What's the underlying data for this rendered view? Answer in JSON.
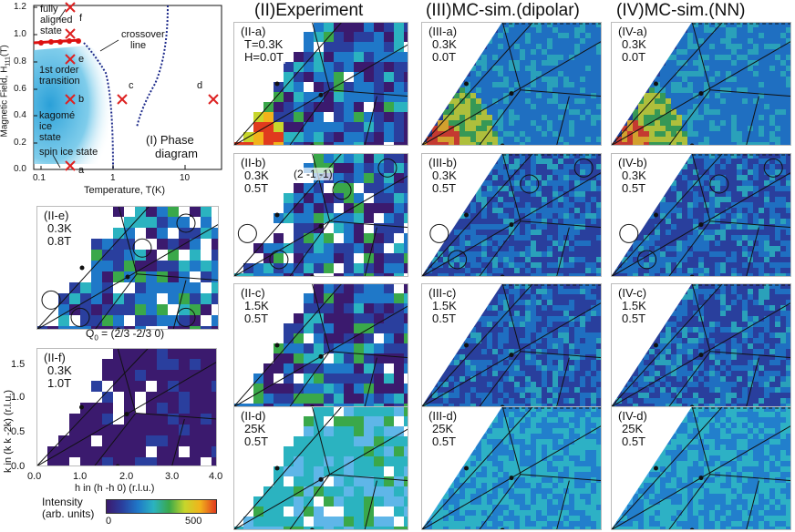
{
  "columns": {
    "experiment": "(II)Experiment",
    "dipolar": "(III)MC-sim.(dipolar)",
    "nn": "(IV)MC-sim.(NN)"
  },
  "phase_diagram": {
    "title_line1": "(I) Phase",
    "title_line2": "diagram",
    "ylabel": "Magnetic Field, H",
    "ylabel_sub": "111",
    "ylabel_unit": "(T)",
    "xlabel": "Temperature, T(K)",
    "y_ticks": [
      "1.2",
      "1.0",
      "0.8",
      "0.6",
      "0.4",
      "0.2",
      "0.0"
    ],
    "x_ticks": [
      "0.1",
      "1",
      "10"
    ],
    "regions": {
      "fully_aligned_1": "fully",
      "fully_aligned_2": "aligned",
      "fully_aligned_3": "state",
      "first_order_1": "1st order",
      "first_order_2": "transition",
      "kagome_1": "kagomé",
      "kagome_2": "ice",
      "kagome_3": "state",
      "spin_ice": "spin ice state",
      "crossover_1": "crossover",
      "crossover_2": "line"
    },
    "points": [
      "a",
      "b",
      "c",
      "d",
      "e",
      "f"
    ]
  },
  "experiment_panels": [
    {
      "id": "(II-a)",
      "line1": "T=0.3K",
      "line2": "H=0.0T"
    },
    {
      "id": "(II-b)",
      "line1": "0.3K",
      "line2": "0.5T",
      "annotation": "(2 -1 -1)"
    },
    {
      "id": "(II-c)",
      "line1": "1.5K",
      "line2": "0.5T"
    },
    {
      "id": "(II-d)",
      "line1": "25K",
      "line2": "0.5T"
    }
  ],
  "dipolar_panels": [
    {
      "id": "(III-a)",
      "line1": "0.3K",
      "line2": "0.0T"
    },
    {
      "id": "(III-b)",
      "line1": "0.3K",
      "line2": "0.5T"
    },
    {
      "id": "(III-c)",
      "line1": "1.5K",
      "line2": "0.5T"
    },
    {
      "id": "(III-d)",
      "line1": "25K",
      "line2": "0.5T"
    }
  ],
  "nn_panels": [
    {
      "id": "(IV-a)",
      "line1": "0.3K",
      "line2": "0.0T"
    },
    {
      "id": "(IV-b)",
      "line1": "0.3K",
      "line2": "0.5T"
    },
    {
      "id": "(IV-c)",
      "line1": "1.5K",
      "line2": "0.5T"
    },
    {
      "id": "(IV-d)",
      "line1": "25K",
      "line2": "0.5T"
    }
  ],
  "panel_e": {
    "id": "(II-e)",
    "line1": "0.3K",
    "line2": "0.8T",
    "q_label": "Q",
    "q_sub": "0",
    "q_value": " = (2/3 -2/3 0)"
  },
  "panel_f": {
    "id": "(II-f)",
    "line1": "0.3K",
    "line2": "1.0T",
    "ylabel": "k in (k k -2k) (r.l.u.)",
    "xlabel": "h in (h -h 0) (r.l.u.)",
    "y_ticks": [
      "1.5",
      "1.0",
      "0.5",
      "0.0"
    ],
    "x_ticks": [
      "0.0",
      "1.0",
      "2.0",
      "3.0",
      "4.0"
    ]
  },
  "colorbar": {
    "label1": "Intensity",
    "label2": "(arb. units)",
    "min": "0",
    "max": "500",
    "colors": [
      "#3b1a6e",
      "#2a3f9e",
      "#1f78c8",
      "#2bb3c0",
      "#3aa84a",
      "#c7d62c",
      "#f2b21b",
      "#e03a1e"
    ]
  }
}
